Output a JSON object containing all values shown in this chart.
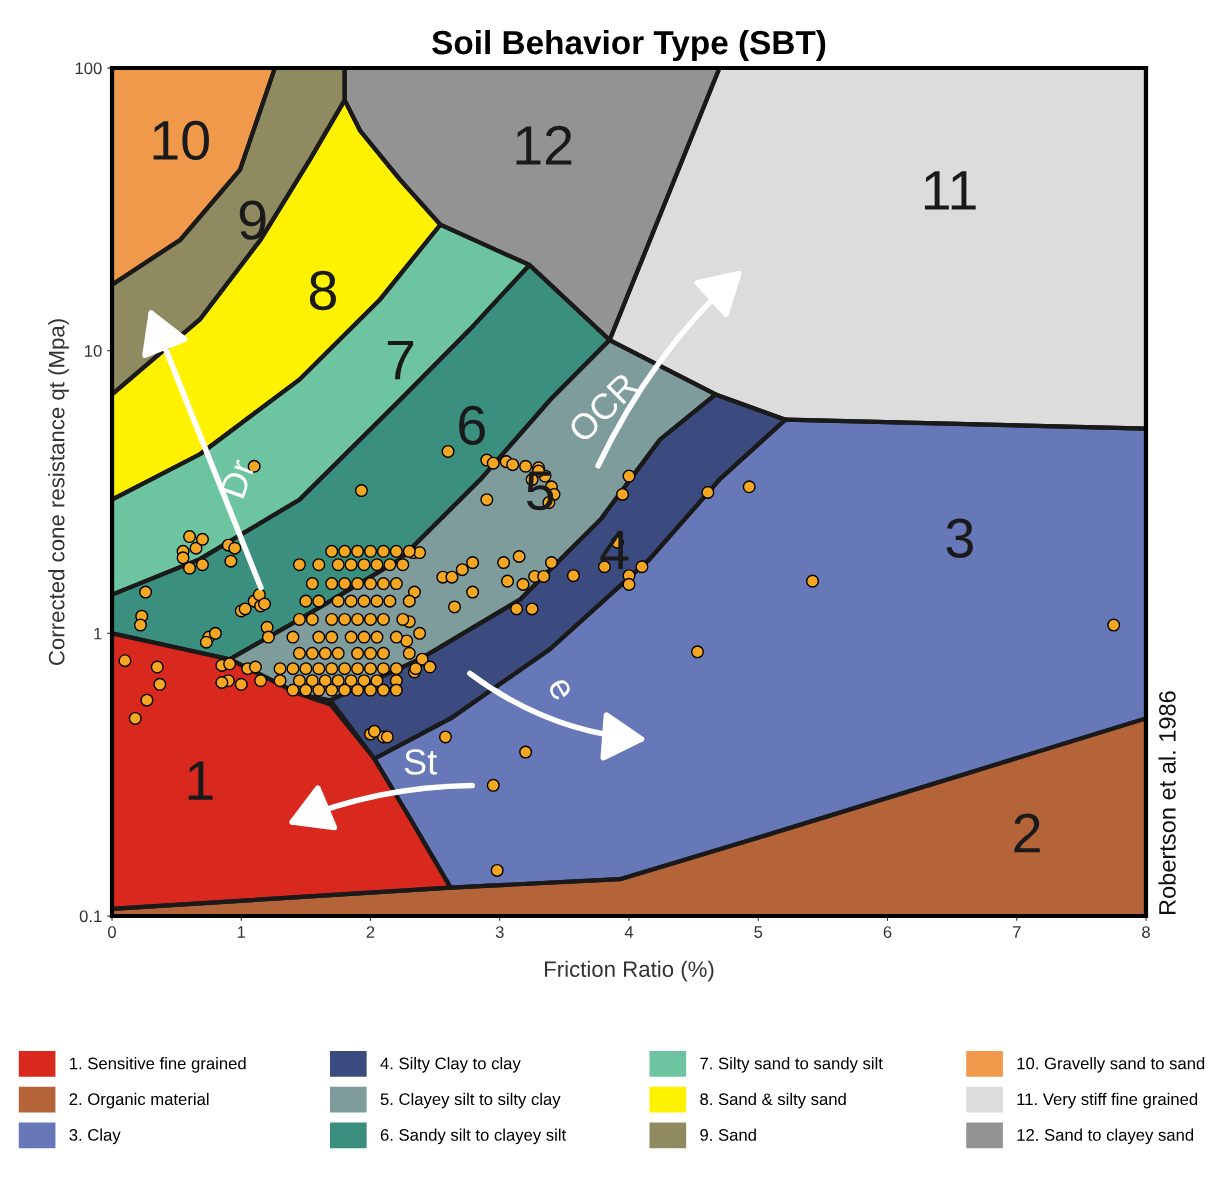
{
  "chart_data": {
    "type": "scatter",
    "title": "Soil Behavior Type (SBT)",
    "xlabel": "Friction Ratio (%)",
    "ylabel": "Corrected cone resistance qt (Mpa)",
    "log": "y",
    "xlim": [
      0,
      8
    ],
    "ylim": [
      0.1,
      100
    ],
    "xticks": [
      0,
      1,
      2,
      3,
      4,
      5,
      6,
      7,
      8
    ],
    "yticks": [
      0.1,
      1,
      10,
      100
    ],
    "grid": false,
    "legend": "bottom",
    "series": [
      {
        "type": "area",
        "name": "1. Sensitive fine grained",
        "color": "#d9281e",
        "x": [
          0,
          0.91,
          1.45,
          1.69,
          2.03,
          2.31,
          2.62,
          0
        ],
        "values": [
          1,
          0.81,
          0.61,
          0.56,
          0.36,
          0.22,
          0.126,
          0.106
        ]
      },
      {
        "type": "area",
        "name": "2. Organic material",
        "color": "#b5643a",
        "x": [
          0,
          2.62,
          3.93,
          5.01,
          8,
          8,
          0
        ],
        "values": [
          0.106,
          0.126,
          0.135,
          0.19,
          0.5,
          0.1,
          0.1
        ]
      },
      {
        "type": "area",
        "name": "3. Clay",
        "color": "#6678b8",
        "x": [
          2.03,
          2.62,
          3.39,
          4.16,
          4.7,
          5.21,
          8,
          8,
          5.01,
          3.93,
          2.62,
          2.31
        ],
        "values": [
          0.36,
          0.5,
          0.88,
          1.83,
          3.5,
          5.7,
          5.3,
          0.5,
          0.19,
          0.135,
          0.126,
          0.22
        ]
      },
      {
        "type": "area",
        "name": "4. Silty Clay to clay",
        "color": "#3b4b80",
        "x": [
          2.03,
          2.62,
          3.39,
          4.16,
          4.7,
          5.21,
          4.67,
          4.24,
          3.78,
          3.16,
          2.38,
          1.69
        ],
        "values": [
          0.36,
          0.5,
          0.88,
          1.83,
          3.5,
          5.7,
          7.0,
          4.85,
          2.53,
          1.32,
          0.81,
          0.58
        ]
      },
      {
        "type": "area",
        "name": "5. Clayey silt to silty clay",
        "color": "#7f9c9c",
        "x": [
          1.69,
          2.38,
          3.16,
          3.78,
          4.24,
          4.67,
          3.85,
          3.39,
          2.85,
          2.23,
          1.45,
          0.91,
          1.45
        ],
        "values": [
          0.58,
          0.81,
          1.32,
          2.53,
          4.85,
          7.0,
          10.9,
          6.7,
          3.5,
          1.83,
          1.12,
          0.81,
          0.61
        ]
      },
      {
        "type": "area",
        "name": "6. Sandy silt to clayey silt",
        "color": "#3a8f7e",
        "x": [
          0,
          0.91,
          1.45,
          2.23,
          2.85,
          3.39,
          3.85,
          3.23,
          2.77,
          2.23,
          1.45,
          0.68,
          0
        ],
        "values": [
          1,
          0.81,
          1.12,
          1.83,
          3.5,
          6.7,
          10.9,
          20.1,
          11.9,
          6.7,
          2.97,
          1.83,
          1.37
        ]
      },
      {
        "type": "area",
        "name": "7. Silty sand to sandy silt",
        "color": "#6cc4a0",
        "x": [
          0,
          0.68,
          1.45,
          2.23,
          2.77,
          3.23,
          2.54,
          2.07,
          1.45,
          0.68,
          0
        ],
        "values": [
          1.37,
          1.83,
          2.97,
          6.7,
          11.9,
          20.1,
          27.9,
          15.1,
          7.9,
          4.3,
          2.97
        ]
      },
      {
        "type": "area",
        "name": "8. Sand & silty sand",
        "color": "#fff200",
        "x": [
          0,
          0.68,
          1.45,
          2.07,
          2.54,
          2.23,
          1.92,
          1.8,
          1.53,
          1.15,
          0.68,
          0
        ],
        "values": [
          2.97,
          4.3,
          7.9,
          15.1,
          27.9,
          40.2,
          60,
          77,
          47.3,
          24.7,
          12.9,
          7.0
        ]
      },
      {
        "type": "area",
        "name": "9. Sand",
        "color": "#8f8a60",
        "x": [
          0,
          0.68,
          1.15,
          1.53,
          1.8,
          1.8,
          1.26,
          0.99,
          0.53,
          0
        ],
        "values": [
          7.0,
          12.9,
          24.7,
          47.3,
          77,
          100,
          100,
          43.6,
          24.7,
          17.1
        ]
      },
      {
        "type": "area",
        "name": "10. Gravelly sand to sand",
        "color": "#f0994a",
        "x": [
          0,
          0.53,
          0.99,
          1.26,
          0
        ],
        "values": [
          17.1,
          24.7,
          43.6,
          100,
          100
        ]
      },
      {
        "type": "area",
        "name": "11. Very stiff fine grained",
        "color": "#dcdcdc",
        "x": [
          4.7,
          8,
          8,
          5.21,
          4.67,
          3.85
        ],
        "values": [
          100,
          100,
          5.3,
          5.7,
          7.0,
          10.9
        ]
      },
      {
        "type": "area",
        "name": "12. Sand to clayey sand",
        "color": "#939393",
        "x": [
          1.8,
          4.7,
          3.85,
          3.23,
          2.54,
          2.23,
          1.92,
          1.8
        ],
        "values": [
          100,
          100,
          10.9,
          20.1,
          27.9,
          40.2,
          60,
          77
        ]
      },
      {
        "color": "#f5a623",
        "marker": "circle",
        "x": [
          0.1,
          0.35,
          0.37,
          0.27,
          0.18,
          0.23,
          0.22,
          0.26,
          0.55,
          0.6,
          0.65,
          0.7,
          0.6,
          0.55,
          0.7,
          0.9,
          0.95,
          0.92,
          1.1,
          1.0,
          1.1,
          1.15,
          0.75,
          0.73,
          1.2,
          0.85,
          1.05,
          0.9,
          1.0,
          1.15,
          0.85,
          1.11,
          0.91,
          0.8,
          1.21,
          1.03,
          1.14,
          1.18,
          1.93,
          2.6,
          2.9,
          2.95,
          3.05,
          3.1,
          3.2,
          3.3,
          3.35,
          3.4,
          3.42,
          3.38,
          3.3,
          3.25,
          2.9,
          4.0,
          3.95,
          4.61,
          4.93,
          3.91,
          3.81,
          4.1,
          4.0,
          4.0,
          3.57,
          3.4,
          3.27,
          3.34,
          3.18,
          3.06,
          3.03,
          3.15,
          3.13,
          3.25,
          2.79,
          2.65,
          2.79,
          2.71,
          2.56,
          2.63,
          2.33,
          2.38,
          4.53,
          2.58,
          5.42,
          7.75,
          3.2,
          2.95,
          2.98,
          2.0,
          2.1,
          2.03,
          2.13,
          2.34,
          2.3,
          2.38,
          2.28,
          2.4,
          2.46,
          2.34,
          1.7,
          1.8,
          1.9,
          2.0,
          2.1,
          2.2,
          2.3,
          1.45,
          1.6,
          1.75,
          1.85,
          1.95,
          2.05,
          2.15,
          2.25,
          1.55,
          1.7,
          1.8,
          1.9,
          2.0,
          2.1,
          2.2,
          1.5,
          1.6,
          1.75,
          1.85,
          1.95,
          2.05,
          2.15,
          2.3,
          1.45,
          1.55,
          1.7,
          1.8,
          1.9,
          2.0,
          2.1,
          2.25,
          1.4,
          1.6,
          1.7,
          1.85,
          1.95,
          2.05,
          2.2,
          1.45,
          1.55,
          1.65,
          1.75,
          1.9,
          2.0,
          2.1,
          2.3,
          1.3,
          1.4,
          1.5,
          1.6,
          1.7,
          1.8,
          1.9,
          2.0,
          2.1,
          2.2,
          2.35,
          1.3,
          1.45,
          1.55,
          1.65,
          1.75,
          1.85,
          1.95,
          2.05,
          2.2,
          1.4,
          1.5,
          1.6,
          1.7,
          1.8,
          1.9,
          2.0,
          2.1,
          2.2
        ],
        "values": [
          0.8,
          0.76,
          0.66,
          0.58,
          0.5,
          1.15,
          1.07,
          1.4,
          1.95,
          2.2,
          2.0,
          1.75,
          1.7,
          1.85,
          2.15,
          2.05,
          2.0,
          1.8,
          3.9,
          1.2,
          1.3,
          1.25,
          0.97,
          0.93,
          1.05,
          0.77,
          0.75,
          0.68,
          0.66,
          0.68,
          0.67,
          0.76,
          0.78,
          1.0,
          0.97,
          1.22,
          1.37,
          1.27,
          3.2,
          4.4,
          4.1,
          4.0,
          4.05,
          3.95,
          3.9,
          3.85,
          3.6,
          3.3,
          3.1,
          2.9,
          3.75,
          3.5,
          2.97,
          3.6,
          3.1,
          3.15,
          3.3,
          2.1,
          1.72,
          1.72,
          1.6,
          1.49,
          1.6,
          1.78,
          1.59,
          1.59,
          1.49,
          1.53,
          1.78,
          1.87,
          1.22,
          1.22,
          1.4,
          1.24,
          1.78,
          1.68,
          1.58,
          1.58,
          1.93,
          1.93,
          0.86,
          0.43,
          1.53,
          1.07,
          0.38,
          0.29,
          0.145,
          0.44,
          0.43,
          0.45,
          0.43,
          1.4,
          1.1,
          1.0,
          0.94,
          0.81,
          0.76,
          0.73,
          1.95,
          1.95,
          1.95,
          1.95,
          1.95,
          1.95,
          1.95,
          1.75,
          1.75,
          1.75,
          1.75,
          1.75,
          1.75,
          1.75,
          1.75,
          1.5,
          1.5,
          1.5,
          1.5,
          1.5,
          1.5,
          1.5,
          1.3,
          1.3,
          1.3,
          1.3,
          1.3,
          1.3,
          1.3,
          1.3,
          1.12,
          1.12,
          1.12,
          1.12,
          1.12,
          1.12,
          1.12,
          1.12,
          0.97,
          0.97,
          0.97,
          0.97,
          0.97,
          0.97,
          0.97,
          0.85,
          0.85,
          0.85,
          0.85,
          0.85,
          0.85,
          0.85,
          0.85,
          0.75,
          0.75,
          0.75,
          0.75,
          0.75,
          0.75,
          0.75,
          0.75,
          0.75,
          0.75,
          0.75,
          0.68,
          0.68,
          0.68,
          0.68,
          0.68,
          0.68,
          0.68,
          0.68,
          0.68,
          0.63,
          0.63,
          0.63,
          0.63,
          0.63,
          0.63,
          0.63,
          0.63,
          0.63
        ]
      }
    ],
    "annotations": [
      "1",
      "2",
      "3",
      "4",
      "5",
      "6",
      "7",
      "8",
      "9",
      "10",
      "11",
      "12",
      "Dr",
      "OCR",
      "e",
      "St",
      "Robertson et al. 1986"
    ]
  }
}
